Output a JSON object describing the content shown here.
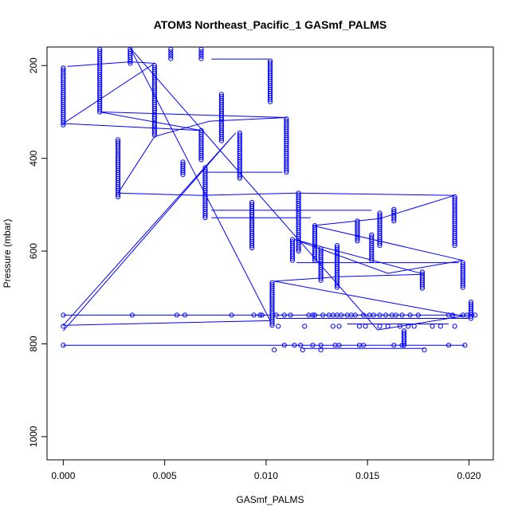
{
  "chart_data": {
    "type": "scatter",
    "title": "ATOM3 Northeast_Pacific_1 GASmf_PALMS",
    "xlabel": "GASmf_PALMS",
    "ylabel": "Pressure (mbar)",
    "xlim": [
      -0.0008,
      0.0212
    ],
    "ylim": [
      1050,
      160
    ],
    "y_reversed": true,
    "grid": false,
    "color": "#0000ff",
    "x_ticks": [
      {
        "value": 0.0,
        "label": "0.000"
      },
      {
        "value": 0.005,
        "label": "0.005"
      },
      {
        "value": 0.01,
        "label": "0.010"
      },
      {
        "value": 0.015,
        "label": "0.015"
      },
      {
        "value": 0.02,
        "label": "0.020"
      }
    ],
    "y_ticks": [
      {
        "value": 200,
        "label": "200"
      },
      {
        "value": 400,
        "label": "400"
      },
      {
        "value": 600,
        "label": "600"
      },
      {
        "value": 800,
        "label": "800"
      },
      {
        "value": 1000,
        "label": "1000"
      }
    ],
    "columns": [
      {
        "x": 0.0,
        "y_from": 205,
        "y_to": 328
      },
      {
        "x": 0.0018,
        "y_from": 165,
        "y_to": 300
      },
      {
        "x": 0.0027,
        "y_from": 360,
        "y_to": 483
      },
      {
        "x": 0.0033,
        "y_from": 165,
        "y_to": 195
      },
      {
        "x": 0.0045,
        "y_from": 200,
        "y_to": 350
      },
      {
        "x": 0.0053,
        "y_from": 165,
        "y_to": 185
      },
      {
        "x": 0.0059,
        "y_from": 408,
        "y_to": 435
      },
      {
        "x": 0.0068,
        "y_from": 165,
        "y_to": 185
      },
      {
        "x": 0.0068,
        "y_from": 340,
        "y_to": 403
      },
      {
        "x": 0.007,
        "y_from": 420,
        "y_to": 528
      },
      {
        "x": 0.0078,
        "y_from": 262,
        "y_to": 362
      },
      {
        "x": 0.0087,
        "y_from": 345,
        "y_to": 443
      },
      {
        "x": 0.0093,
        "y_from": 495,
        "y_to": 593
      },
      {
        "x": 0.0102,
        "y_from": 190,
        "y_to": 278
      },
      {
        "x": 0.0103,
        "y_from": 668,
        "y_to": 760
      },
      {
        "x": 0.011,
        "y_from": 315,
        "y_to": 430
      },
      {
        "x": 0.0113,
        "y_from": 575,
        "y_to": 620
      },
      {
        "x": 0.0116,
        "y_from": 475,
        "y_to": 600
      },
      {
        "x": 0.0124,
        "y_from": 545,
        "y_to": 620
      },
      {
        "x": 0.0127,
        "y_from": 595,
        "y_to": 663
      },
      {
        "x": 0.0135,
        "y_from": 588,
        "y_to": 678
      },
      {
        "x": 0.0145,
        "y_from": 535,
        "y_to": 578
      },
      {
        "x": 0.0152,
        "y_from": 565,
        "y_to": 620
      },
      {
        "x": 0.0156,
        "y_from": 518,
        "y_to": 588
      },
      {
        "x": 0.0163,
        "y_from": 510,
        "y_to": 535
      },
      {
        "x": 0.0168,
        "y_from": 772,
        "y_to": 803
      },
      {
        "x": 0.0177,
        "y_from": 645,
        "y_to": 680
      },
      {
        "x": 0.0193,
        "y_from": 483,
        "y_to": 588
      },
      {
        "x": 0.0197,
        "y_from": 625,
        "y_to": 678
      },
      {
        "x": 0.0201,
        "y_from": 710,
        "y_to": 745
      }
    ],
    "rows": [
      {
        "y": 738,
        "x": [
          0.0,
          0.0034,
          0.0056,
          0.006,
          0.0083,
          0.0094,
          0.0097,
          0.0098,
          0.0105,
          0.0109,
          0.0112,
          0.0121,
          0.0123,
          0.0124,
          0.0128,
          0.0131,
          0.0133,
          0.0135,
          0.0137,
          0.014,
          0.0142,
          0.0144,
          0.0148,
          0.0151,
          0.0153,
          0.0156,
          0.0159,
          0.0162,
          0.0164,
          0.0167,
          0.0171,
          0.0175,
          0.019,
          0.0192,
          0.0197,
          0.0199,
          0.0203
        ]
      },
      {
        "y": 762,
        "x": [
          0.0,
          0.0106,
          0.0119,
          0.0133,
          0.0136,
          0.0146,
          0.0149,
          0.0156,
          0.016,
          0.0166,
          0.017,
          0.0173,
          0.0182,
          0.0186,
          0.0193
        ]
      },
      {
        "y": 803,
        "x": [
          0.0,
          0.0109,
          0.0114,
          0.0117,
          0.0123,
          0.0127,
          0.0134,
          0.0136,
          0.0146,
          0.0148,
          0.0163,
          0.0167,
          0.019,
          0.0198
        ]
      },
      {
        "y": 813,
        "x": [
          0.0104,
          0.0118,
          0.0127,
          0.0178
        ]
      }
    ],
    "line_path": [
      [
        0.0,
        772
      ],
      [
        0.0085,
        345
      ],
      [
        0.0,
        760
      ],
      [
        0.0102,
        750
      ],
      [
        0.0033,
        162
      ],
      [
        0.0155,
        770
      ],
      [
        0.0197,
        740
      ],
      [
        0.0104,
        665
      ],
      [
        0.0137,
        655
      ],
      [
        0.0178,
        650
      ],
      [
        0.0114,
        575
      ],
      [
        0.016,
        648
      ],
      [
        0.0197,
        620
      ],
      [
        0.0123,
        545
      ],
      [
        0.0156,
        530
      ],
      [
        0.0193,
        480
      ],
      [
        0.0116,
        475
      ],
      [
        0.0068,
        480
      ],
      [
        0.0027,
        475
      ],
      [
        0.0045,
        353
      ],
      [
        0.0072,
        320
      ],
      [
        0.011,
        312
      ],
      [
        0.0018,
        300
      ],
      [
        0.0068,
        340
      ],
      [
        0.0,
        325
      ],
      [
        0.0045,
        195
      ],
      [
        0.0033,
        192
      ],
      [
        0.0002,
        202
      ]
    ],
    "horizontal_lines": [
      {
        "y": 738,
        "x_from": 0.0,
        "x_to": 0.0203
      },
      {
        "y": 803,
        "x_from": 0.0,
        "x_to": 0.0198
      },
      {
        "y": 745,
        "x_from": 0.0105,
        "x_to": 0.02
      },
      {
        "y": 757,
        "x_from": 0.014,
        "x_to": 0.019
      },
      {
        "y": 810,
        "x_from": 0.0118,
        "x_to": 0.0178
      },
      {
        "y": 186,
        "x_from": 0.0073,
        "x_to": 0.0101
      },
      {
        "y": 430,
        "x_from": 0.007,
        "x_to": 0.0108
      },
      {
        "y": 512,
        "x_from": 0.0073,
        "x_to": 0.0152
      },
      {
        "y": 528,
        "x_from": 0.0073,
        "x_to": 0.0122
      },
      {
        "y": 625,
        "x_from": 0.0115,
        "x_to": 0.0195
      }
    ]
  }
}
